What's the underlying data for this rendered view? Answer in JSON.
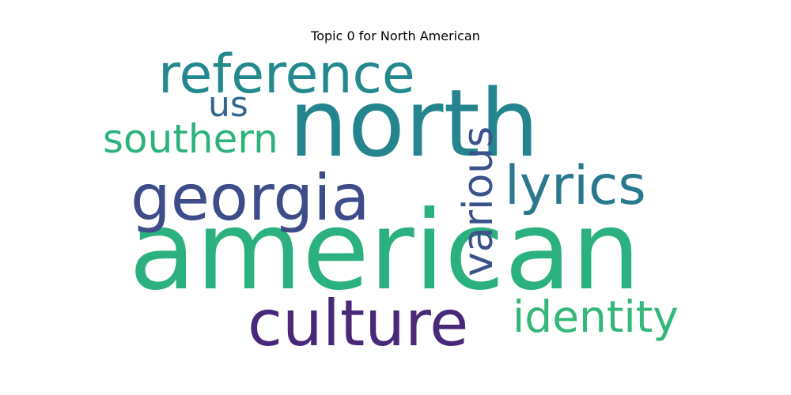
{
  "chart_data": {
    "type": "wordcloud",
    "title": "Topic 0 for North American",
    "words": [
      {
        "text": "american",
        "weight": 1.0,
        "color": "#2bb07f"
      },
      {
        "text": "north",
        "weight": 0.86,
        "color": "#25858e"
      },
      {
        "text": "georgia",
        "weight": 0.58,
        "color": "#3e4c8a"
      },
      {
        "text": "culture",
        "weight": 0.58,
        "color": "#482878"
      },
      {
        "text": "reference",
        "weight": 0.5,
        "color": "#23898e"
      },
      {
        "text": "lyrics",
        "weight": 0.5,
        "color": "#2a788e"
      },
      {
        "text": "identity",
        "weight": 0.4,
        "color": "#35b779"
      },
      {
        "text": "southern",
        "weight": 0.38,
        "color": "#2db27d"
      },
      {
        "text": "various",
        "weight": 0.4,
        "color": "#3b528b"
      },
      {
        "text": "us",
        "weight": 0.3,
        "color": "#31668e"
      }
    ]
  }
}
